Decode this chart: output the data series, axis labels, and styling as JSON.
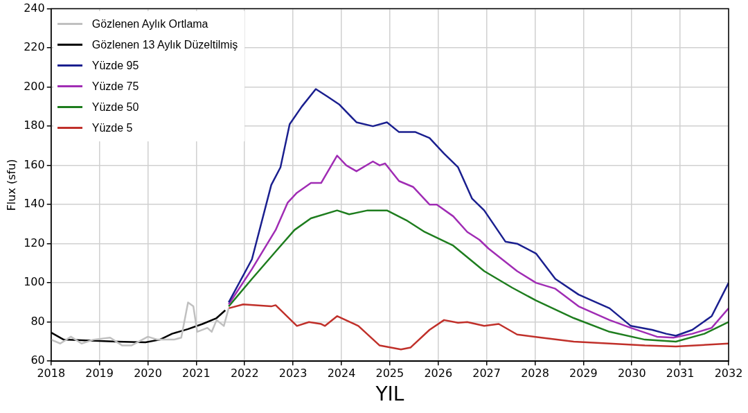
{
  "chart_data": {
    "type": "line",
    "xlabel": "YIL",
    "ylabel": "Flux (sfu)",
    "xlim": [
      2018,
      2032
    ],
    "xticks": [
      2018,
      2019,
      2020,
      2021,
      2022,
      2023,
      2024,
      2025,
      2026,
      2027,
      2028,
      2029,
      2030,
      2031,
      2032
    ],
    "ylim": [
      60,
      240
    ],
    "yticks": [
      60,
      80,
      100,
      120,
      140,
      160,
      180,
      200,
      220,
      240
    ],
    "grid": true,
    "legend": "top left",
    "marker": "none",
    "line_style": "solid",
    "series": [
      {
        "name": "Gözlenen Aylık Ortlama",
        "color": "#c0c0c0",
        "x": [
          2018.0,
          2018.19,
          2018.41,
          2018.63,
          2018.88,
          2019.22,
          2019.47,
          2019.66,
          2020.0,
          2020.2,
          2020.54,
          2020.69,
          2020.83,
          2020.94,
          2021.02,
          2021.23,
          2021.32,
          2021.42,
          2021.57,
          2021.67
        ],
        "values": [
          71,
          69,
          72.5,
          69,
          71,
          72,
          68,
          68,
          72.5,
          71,
          71,
          72,
          90,
          88,
          75,
          77,
          75,
          81,
          78,
          87
        ]
      },
      {
        "name": "Gözlenen 13 Aylık Düzeltilmiş",
        "color": "#000000",
        "x": [
          2018.0,
          2018.26,
          2018.63,
          2019.36,
          2019.95,
          2020.25,
          2020.5,
          2020.83,
          2021.13,
          2021.42,
          2021.6
        ],
        "values": [
          74.6,
          71,
          70.7,
          70,
          69.6,
          71,
          74,
          76.4,
          79,
          82,
          86
        ]
      },
      {
        "name": "Yüzde 95",
        "color": "#1a1f8f",
        "x": [
          2021.67,
          2022.15,
          2022.55,
          2022.74,
          2022.93,
          2023.18,
          2023.47,
          2023.72,
          2023.96,
          2024.31,
          2024.65,
          2024.94,
          2025.19,
          2025.53,
          2025.82,
          2026.12,
          2026.41,
          2026.7,
          2026.95,
          2027.39,
          2027.63,
          2028.02,
          2028.42,
          2028.9,
          2029.54,
          2029.98,
          2030.42,
          2030.71,
          2030.91,
          2031.25,
          2031.65,
          2032.0
        ],
        "values": [
          90,
          112,
          150,
          159,
          181,
          190,
          199,
          195,
          191,
          182,
          180,
          182,
          177,
          177,
          174,
          166,
          159,
          143,
          137,
          121,
          120,
          115,
          102,
          94,
          87,
          78,
          76,
          74,
          73,
          76,
          83,
          100
        ]
      },
      {
        "name": "Yüzde 75",
        "color": "#a02cb4",
        "x": [
          2021.67,
          2022.15,
          2022.64,
          2022.89,
          2023.08,
          2023.37,
          2023.58,
          2023.91,
          2024.1,
          2024.31,
          2024.65,
          2024.79,
          2024.9,
          2025.19,
          2025.48,
          2025.82,
          2025.97,
          2026.31,
          2026.6,
          2026.85,
          2027.04,
          2027.63,
          2028.02,
          2028.42,
          2028.9,
          2029.54,
          2029.98,
          2030.52,
          2030.86,
          2031.25,
          2031.65,
          2032.0
        ],
        "values": [
          89,
          107,
          127,
          141,
          146,
          151,
          151,
          165,
          160,
          157,
          162,
          160,
          161,
          152,
          149,
          140,
          140,
          134,
          126,
          122,
          117.5,
          106,
          100,
          97,
          88,
          81,
          77,
          72.5,
          72,
          74,
          77,
          87
        ]
      },
      {
        "name": "Yüzde 50",
        "color": "#1e7d1e",
        "x": [
          2021.67,
          2022.15,
          2022.64,
          2023.03,
          2023.37,
          2023.91,
          2024.16,
          2024.54,
          2024.94,
          2025.34,
          2025.72,
          2026.31,
          2026.95,
          2027.53,
          2028.02,
          2028.8,
          2029.54,
          2030.27,
          2030.91,
          2031.5,
          2032.0
        ],
        "values": [
          88,
          102,
          116,
          127,
          133,
          137,
          135,
          137,
          137,
          132,
          126,
          119,
          106,
          97.5,
          91,
          82,
          75,
          71,
          70,
          74,
          80
        ]
      },
      {
        "name": "Yüzde 5",
        "color": "#c0302a",
        "x": [
          2021.67,
          2021.97,
          2022.55,
          2022.64,
          2023.08,
          2023.33,
          2023.58,
          2023.66,
          2023.91,
          2024.35,
          2024.79,
          2025.23,
          2025.43,
          2025.82,
          2026.12,
          2026.41,
          2026.6,
          2026.95,
          2027.25,
          2027.63,
          2028.13,
          2028.8,
          2029.54,
          2030.27,
          2030.91,
          2032.0
        ],
        "values": [
          87,
          89,
          88,
          88.6,
          78,
          80,
          79,
          78,
          83,
          78,
          68,
          66,
          67,
          76,
          81,
          79.6,
          80,
          78,
          79,
          73.6,
          72,
          70,
          69,
          68,
          67.5,
          69
        ]
      }
    ]
  }
}
